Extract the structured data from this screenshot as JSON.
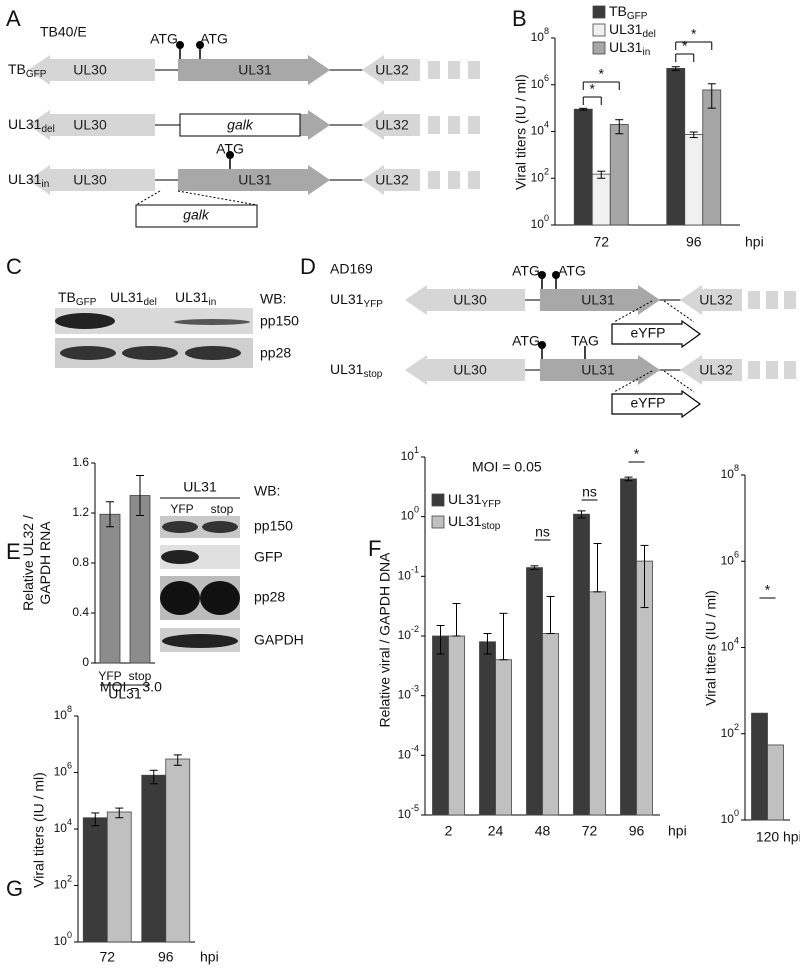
{
  "panel_labels": [
    "A",
    "B",
    "C",
    "D",
    "E",
    "F",
    "G"
  ],
  "diagram_a": {
    "strain": "TB40/E",
    "rows": [
      {
        "name": "TB",
        "sub": "GFP",
        "genes": [
          "UL30",
          "UL31",
          "UL32"
        ],
        "start_codons": [
          "ATG",
          "ATG"
        ]
      },
      {
        "name": "UL31",
        "sub": "del",
        "genes": [
          "UL30",
          "UL32"
        ],
        "insert": "galk"
      },
      {
        "name": "UL31",
        "sub": "in",
        "genes": [
          "UL30",
          "UL31",
          "UL32"
        ],
        "start_codons": [
          "ATG"
        ],
        "insert": "galk"
      }
    ]
  },
  "blot_c": {
    "lanes": [
      {
        "name": "TB",
        "sub": "GFP"
      },
      {
        "name": "UL31",
        "sub": "del"
      },
      {
        "name": "UL31",
        "sub": "in"
      }
    ],
    "wb": "WB:",
    "bands": [
      "pp150",
      "pp28"
    ]
  },
  "diagram_d": {
    "strain": "AD169",
    "rows": [
      {
        "name": "UL31",
        "sub": "YFP",
        "genes": [
          "UL30",
          "UL31",
          "UL32"
        ],
        "start_codons": [
          "ATG",
          "ATG"
        ],
        "reporter": "eYFP"
      },
      {
        "name": "UL31",
        "sub": "stop",
        "genes": [
          "UL30",
          "UL31",
          "UL32"
        ],
        "start_codons": [
          "ATG"
        ],
        "stop_codon": "TAG",
        "reporter": "eYFP"
      }
    ]
  },
  "blot_e": {
    "group": "UL31",
    "lanes": [
      "YFP",
      "stop"
    ],
    "wb": "WB:",
    "bands": [
      "pp150",
      "GFP",
      "pp28",
      "GAPDH"
    ]
  },
  "chart_data": [
    {
      "type": "bar",
      "log_scale": true,
      "ylabel": "Viral titers (IU / ml)",
      "xlabel": "hpi",
      "legend": "upper left",
      "categories": [
        "72",
        "96"
      ],
      "series": [
        {
          "name": "TB",
          "name_sub": "GFP",
          "color": "#3b3b3b",
          "values": [
            90000,
            5000000
          ],
          "errors": [
            8000,
            900000
          ]
        },
        {
          "name": "UL31",
          "name_sub": "del",
          "color": "#f0f0f0",
          "values": [
            150,
            7500
          ],
          "errors": [
            50,
            2000
          ]
        },
        {
          "name": "UL31",
          "name_sub": "in",
          "color": "#a6a6a6",
          "values": [
            20000,
            600000
          ],
          "errors": [
            12000,
            500000
          ]
        }
      ],
      "ylim": [
        1,
        100000000
      ],
      "yticks": [
        {
          "value": 1,
          "label": "10",
          "sup": "0"
        },
        {
          "value": 100,
          "label": "10",
          "sup": "2"
        },
        {
          "value": 10000,
          "label": "10",
          "sup": "4"
        },
        {
          "value": 1000000,
          "label": "10",
          "sup": "6"
        },
        {
          "value": 100000000,
          "label": "10",
          "sup": "8"
        }
      ],
      "annotations": [
        "*",
        "*",
        "*",
        "*"
      ]
    },
    {
      "type": "bar",
      "ylabel": [
        "Relative UL32 /",
        "GAPDH RNA"
      ],
      "xlabel": "UL31",
      "categories": [
        "YFP",
        "stop"
      ],
      "values": [
        1.19,
        1.34
      ],
      "errors": [
        0.1,
        0.16
      ],
      "color": "#8c8c8c",
      "ylim": [
        0,
        1.6
      ],
      "yticks": [
        0,
        0.4,
        0.8,
        1.2,
        1.6
      ]
    },
    {
      "type": "bar",
      "log_scale": true,
      "title": "MOI = 0.05",
      "ylabel": "Relative viral / GAPDH DNA",
      "xlabel": "hpi",
      "legend": "upper left",
      "categories": [
        "2",
        "24",
        "48",
        "72",
        "96"
      ],
      "series": [
        {
          "name": "UL31",
          "name_sub": "YFP",
          "color": "#3b3b3b",
          "values": [
            0.01,
            0.008,
            0.14,
            1.1,
            4.3
          ],
          "errors": [
            0.005,
            0.003,
            0.01,
            0.15,
            0.3
          ]
        },
        {
          "name": "UL31",
          "name_sub": "stop",
          "color": "#c0c0c0",
          "values": [
            0.01,
            0.004,
            0.011,
            0.055,
            0.18
          ],
          "errors": [
            0.025,
            0.02,
            0.035,
            0.3,
            0.15
          ]
        }
      ],
      "ylim": [
        1e-05,
        10
      ],
      "yticks": [
        {
          "value": 1e-05,
          "label": "10",
          "sup": "-5"
        },
        {
          "value": 0.0001,
          "label": "10",
          "sup": "-4"
        },
        {
          "value": 0.001,
          "label": "10",
          "sup": "-3"
        },
        {
          "value": 0.01,
          "label": "10",
          "sup": "-2"
        },
        {
          "value": 0.1,
          "label": "10",
          "sup": "-1"
        },
        {
          "value": 1,
          "label": "10",
          "sup": "0"
        },
        {
          "value": 10,
          "label": "10",
          "sup": "1"
        }
      ],
      "annotations": [
        "ns",
        "ns",
        "*"
      ]
    },
    {
      "type": "bar",
      "log_scale": true,
      "ylabel": "Viral titers (IU / ml)",
      "xlabel": "hpi",
      "categories": [
        "120"
      ],
      "series": [
        {
          "color": "#3b3b3b",
          "values": [
            300
          ]
        },
        {
          "color": "#c0c0c0",
          "values": [
            55
          ]
        }
      ],
      "ylim": [
        1,
        100000000
      ],
      "yticks": [
        {
          "value": 1,
          "label": "10",
          "sup": "0"
        },
        {
          "value": 100,
          "label": "10",
          "sup": "2"
        },
        {
          "value": 10000,
          "label": "10",
          "sup": "4"
        },
        {
          "value": 1000000,
          "label": "10",
          "sup": "6"
        },
        {
          "value": 100000000,
          "label": "10",
          "sup": "8"
        }
      ],
      "annotations": [
        "*"
      ]
    },
    {
      "type": "bar",
      "log_scale": true,
      "title": "MOI = 3.0",
      "ylabel": "Viral titers (IU / ml)",
      "xlabel": "hpi",
      "categories": [
        "72",
        "96"
      ],
      "series": [
        {
          "color": "#3b3b3b",
          "values": [
            25000,
            800000
          ],
          "errors": [
            12000,
            400000
          ]
        },
        {
          "color": "#c0c0c0",
          "values": [
            40000,
            3000000
          ],
          "errors": [
            15000,
            1200000
          ]
        }
      ],
      "ylim": [
        1,
        100000000
      ],
      "yticks": [
        {
          "value": 1,
          "label": "10",
          "sup": "0"
        },
        {
          "value": 100,
          "label": "10",
          "sup": "2"
        },
        {
          "value": 10000,
          "label": "10",
          "sup": "4"
        },
        {
          "value": 1000000,
          "label": "10",
          "sup": "6"
        },
        {
          "value": 100000000,
          "label": "10",
          "sup": "8"
        }
      ]
    }
  ]
}
